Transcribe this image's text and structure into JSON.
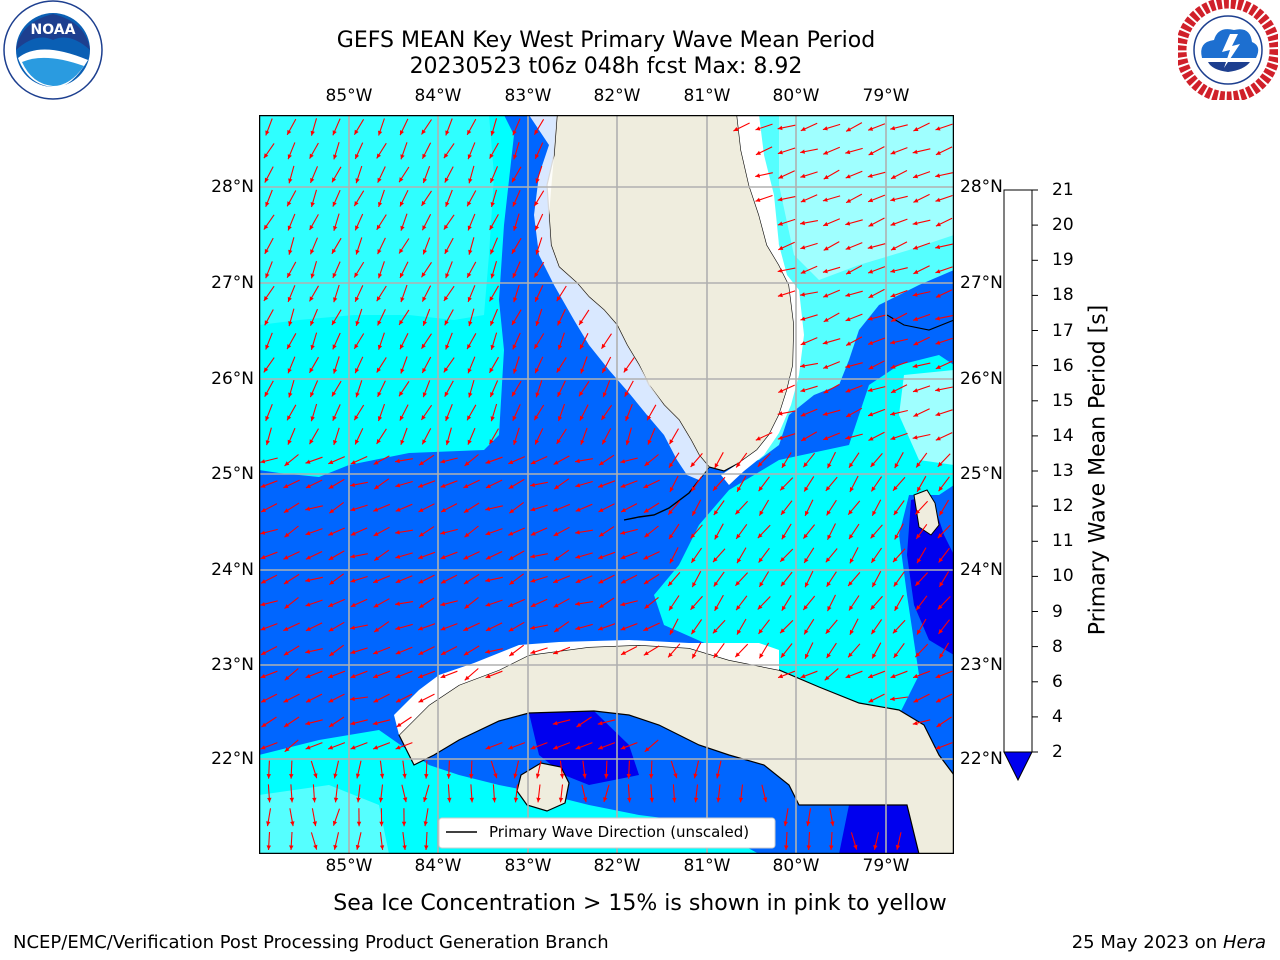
{
  "header": {
    "title_line1": "GEFS MEAN Key West Primary Wave Mean Period",
    "title_line2": "20230523 t06z 048h fcst   Max: 8.92"
  },
  "logos": {
    "left_icon": "noaa-logo",
    "left_text": "NOAA",
    "left_ring_text": "NATIONAL OCEANIC AND ATMOSPHERIC ADMINISTRATION · U.S. DEPARTMENT OF COMMERCE",
    "right_icon": "nws-logo",
    "right_ring_text": "NATIONAL WEATHER SERVICE"
  },
  "map": {
    "lon_labels": [
      "85°W",
      "84°W",
      "83°W",
      "82°W",
      "81°W",
      "80°W",
      "79°W"
    ],
    "lat_labels": [
      "28°N",
      "27°N",
      "26°N",
      "25°N",
      "24°N",
      "23°N",
      "22°N"
    ],
    "legend_label": "Primary Wave Direction (unscaled)",
    "colors": {
      "land": "#efedde",
      "arrow": "#ff0000",
      "grid": "#b0b0b0"
    }
  },
  "colorbar": {
    "label": "Primary Wave Mean Period [s]",
    "ticks": [
      "2",
      "4",
      "6",
      "8",
      "9",
      "10",
      "11",
      "12",
      "13",
      "14",
      "15",
      "16",
      "17",
      "18",
      "19",
      "20",
      "21"
    ],
    "colors": [
      "#0066ff",
      "#00ddff",
      "#44eeff",
      "#99ffff",
      "#44ee77",
      "#00dd00",
      "#44cc00",
      "#88cc00",
      "#aadd00",
      "#ccee00",
      "#eeff00",
      "#ffee00",
      "#ffcc00",
      "#ffaa00",
      "#ff8800",
      "#ff5500",
      "#ff2200",
      "#ff0000"
    ]
  },
  "sea_ice_note": "Sea Ice Concentration > 15% is shown in pink to yellow",
  "footer": {
    "left": "NCEP/EMC/Verification Post Processing Product Generation Branch",
    "right_date": "25 May 2023 on ",
    "right_host": "Hera"
  }
}
